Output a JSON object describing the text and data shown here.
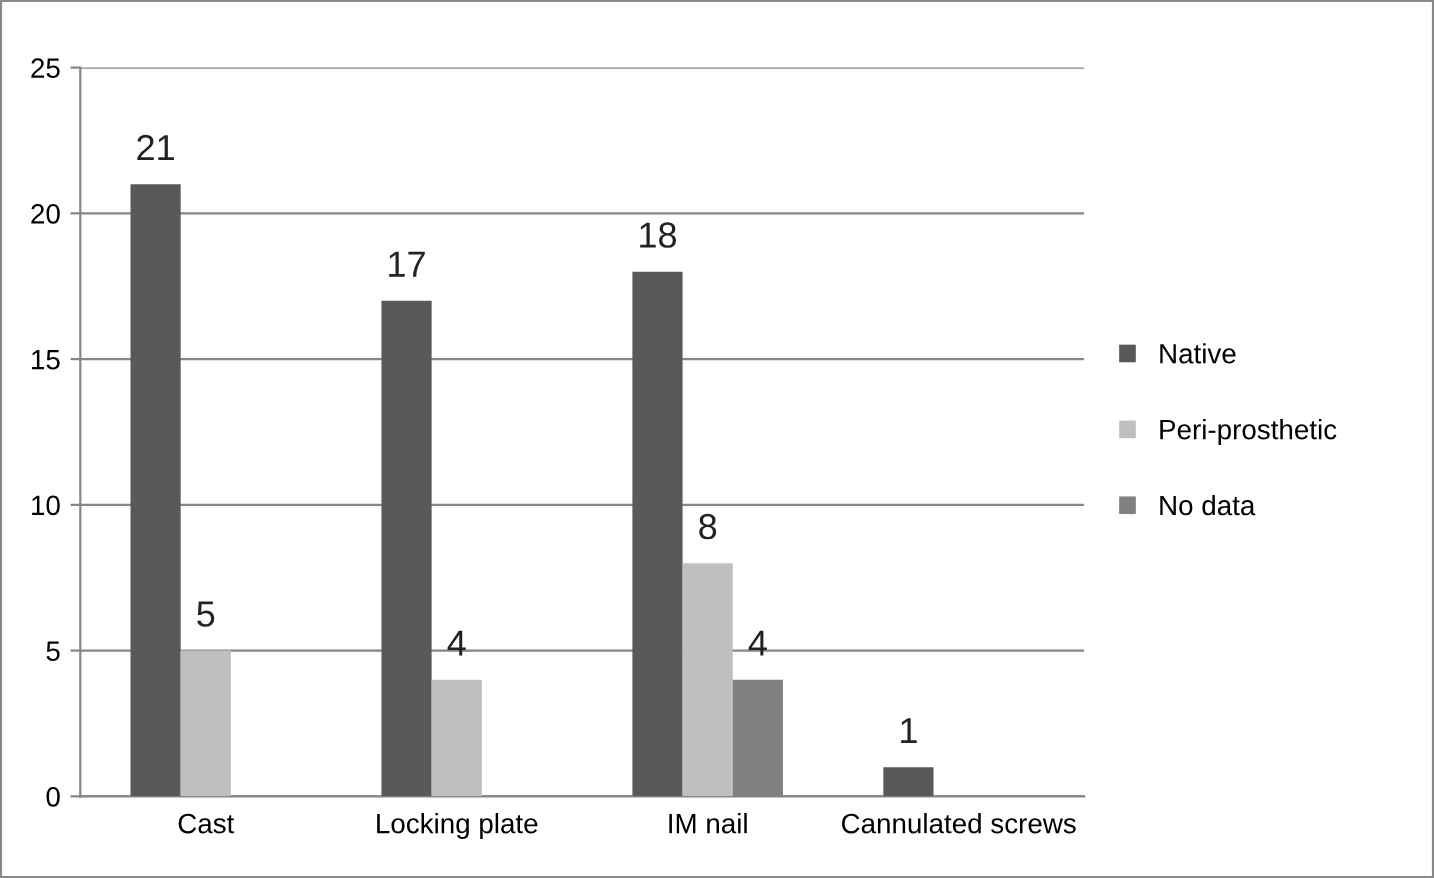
{
  "chart_data": {
    "type": "bar",
    "categories": [
      "Cast",
      "Locking plate",
      "IM nail",
      "Cannulated screws"
    ],
    "series": [
      {
        "name": "Native",
        "color": "#595959",
        "values": [
          21,
          17,
          18,
          1
        ]
      },
      {
        "name": "Peri-prosthetic",
        "color": "#bfbfbf",
        "values": [
          5,
          4,
          8,
          null
        ]
      },
      {
        "name": "No data",
        "color": "#808080",
        "values": [
          null,
          null,
          4,
          null
        ]
      }
    ],
    "ylim": [
      0,
      25
    ],
    "yticks": [
      0,
      5,
      10,
      15,
      20,
      25
    ],
    "grid": "y",
    "legend": "right",
    "data_labels": true
  }
}
